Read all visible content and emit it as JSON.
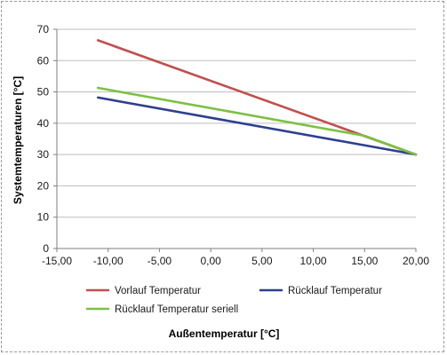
{
  "chart_data": {
    "type": "line",
    "title": "",
    "xlabel": "Außentemperatur [°C]",
    "ylabel": "Systemtemperaturen [°C]",
    "xlim": [
      -15,
      20
    ],
    "ylim": [
      0,
      70
    ],
    "x_ticks": [
      -15,
      -10,
      -5,
      0,
      5,
      10,
      15,
      20
    ],
    "x_tick_labels": [
      "-15,00",
      "-10,00",
      "-5,00",
      "0,00",
      "5,00",
      "10,00",
      "15,00",
      "20,00"
    ],
    "y_ticks": [
      0,
      10,
      20,
      30,
      40,
      50,
      60,
      70
    ],
    "y_tick_labels": [
      "0",
      "10",
      "20",
      "30",
      "40",
      "50",
      "60",
      "70"
    ],
    "grid": "horizontal",
    "legend_position": "bottom",
    "series": [
      {
        "name": "Vorlauf Temperatur",
        "color": "#c0504d",
        "x": [
          -11,
          20
        ],
        "y": [
          66.5,
          30
        ]
      },
      {
        "name": "Rücklauf Temperatur",
        "color": "#2e3f8f",
        "x": [
          -11,
          20
        ],
        "y": [
          48.2,
          30
        ]
      },
      {
        "name": "Rücklauf Temperatur seriell",
        "color": "#7cc142",
        "x": [
          -11,
          15,
          20
        ],
        "y": [
          51.3,
          36,
          30
        ]
      }
    ]
  }
}
